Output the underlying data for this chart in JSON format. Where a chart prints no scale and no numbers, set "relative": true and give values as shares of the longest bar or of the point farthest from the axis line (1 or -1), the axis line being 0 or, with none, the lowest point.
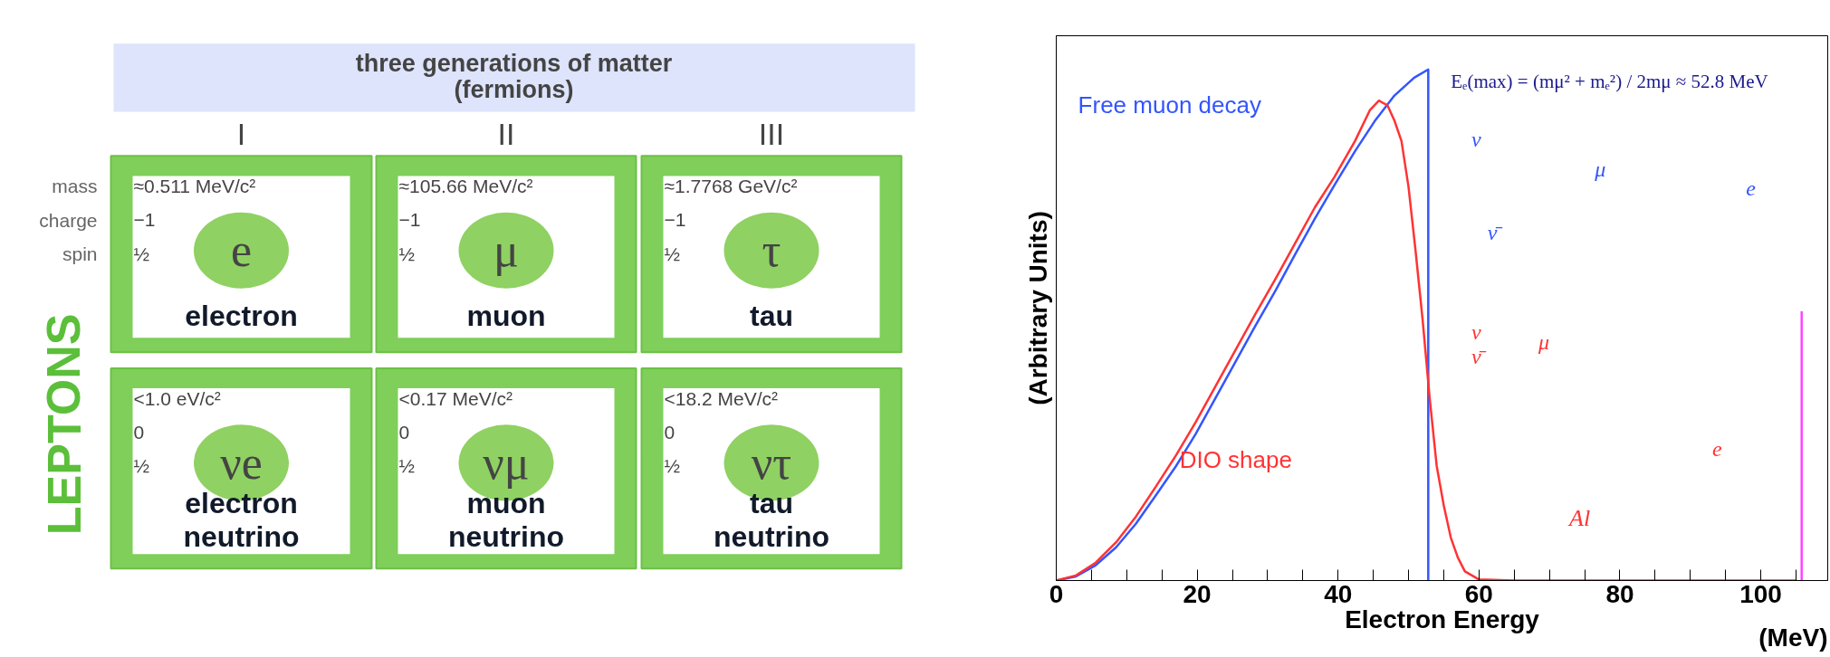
{
  "chart_data": [
    {
      "type": "other",
      "title": "three generations of matter\n(fermions)",
      "categories": [
        "I",
        "II",
        "III"
      ],
      "y_categories": [
        "mass",
        "charge",
        "spin"
      ],
      "ylabel": "LEPTONS",
      "annotations": [
        "≈0.511 MeV/c²",
        "−1",
        "½",
        "e",
        "electron",
        "≈105.66 MeV/c²",
        "−1",
        "½",
        "μ",
        "muon",
        "≈1.7768 GeV/c²",
        "−1",
        "½",
        "τ",
        "tau",
        "<1.0 eV/c²",
        "0",
        "½",
        "νe",
        "electron neutrino",
        "<0.17 MeV/c²",
        "0",
        "½",
        "νμ",
        "muon neutrino",
        "<18.2 MeV/c²",
        "0",
        "½",
        "ντ",
        "tau neutrino"
      ]
    },
    {
      "type": "line",
      "relative": true,
      "xlabel": "Electron Energy",
      "ylabel": "(Arbitrary Units)",
      "xlim": [
        0,
        109.5
      ],
      "xticks": [
        0,
        {
          "value": 5,
          "label": null
        },
        {
          "value": 10,
          "label": null
        },
        {
          "value": 15,
          "label": null
        },
        20,
        {
          "value": 25,
          "label": null
        },
        {
          "value": 30,
          "label": null
        },
        {
          "value": 35,
          "label": null
        },
        40,
        {
          "value": 45,
          "label": null
        },
        {
          "value": 50,
          "label": null
        },
        {
          "value": 55,
          "label": null
        },
        60,
        {
          "value": 65,
          "label": null
        },
        {
          "value": 70,
          "label": null
        },
        {
          "value": 75,
          "label": null
        },
        80,
        {
          "value": 85,
          "label": null
        },
        {
          "value": 90,
          "label": null
        },
        {
          "value": 95,
          "label": null
        },
        100,
        {
          "value": 105,
          "label": null
        }
      ],
      "series": [
        {
          "name": "Free muon decay",
          "color": "#3355ff",
          "x": [
            0,
            2.8,
            5.6,
            8.5,
            11.3,
            14.1,
            17,
            19.8,
            22.6,
            25.4,
            28.2,
            31.1,
            33.9,
            36.7,
            39.5,
            42.4,
            45.2,
            48,
            50.8,
            52.8,
            52.8
          ],
          "values": [
            0,
            0.008,
            0.03,
            0.065,
            0.111,
            0.166,
            0.224,
            0.287,
            0.357,
            0.427,
            0.497,
            0.567,
            0.638,
            0.708,
            0.774,
            0.84,
            0.899,
            0.949,
            0.984,
            1.0,
            0
          ]
        },
        {
          "name": "DIO shape",
          "color": "#ff3333",
          "x": [
            0,
            2.8,
            5.6,
            8.5,
            11.3,
            14.1,
            17,
            19.8,
            22.6,
            25.4,
            28.2,
            31.1,
            33.9,
            36.7,
            39.5,
            42.4,
            44.5,
            45.8,
            47,
            48,
            49,
            50,
            51,
            52,
            53,
            54,
            55,
            56,
            57,
            58,
            60,
            65,
            105
          ],
          "values": [
            0,
            0.01,
            0.035,
            0.075,
            0.125,
            0.183,
            0.245,
            0.31,
            0.38,
            0.45,
            0.52,
            0.59,
            0.66,
            0.73,
            0.79,
            0.86,
            0.92,
            0.939,
            0.93,
            0.9,
            0.86,
            0.77,
            0.645,
            0.51,
            0.357,
            0.224,
            0.147,
            0.084,
            0.045,
            0.018,
            0.002,
            0,
            0
          ]
        },
        {
          "color": "#ff44ff",
          "x": [
            105.8,
            105.8
          ],
          "values": [
            0,
            0.527
          ]
        }
      ],
      "annotations": [
        "Eₑ(max) = (mμ² + mₑ²) / 2mμ ≈ 52.8 MeV",
        "ν",
        "ν̄",
        "μ",
        "e",
        "ν",
        "ν̄",
        "μ",
        "e",
        "Al",
        "(MeV)"
      ]
    }
  ]
}
